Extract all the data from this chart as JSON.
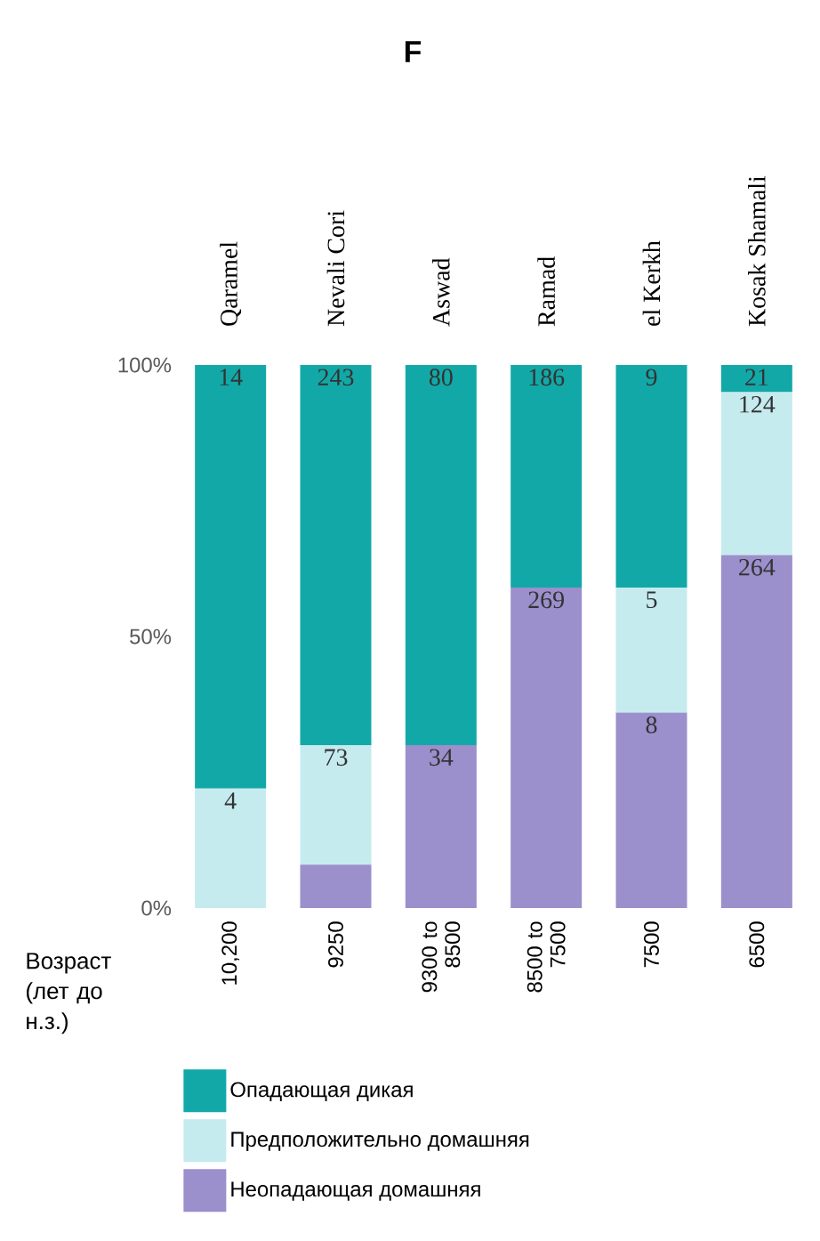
{
  "chart_data": {
    "type": "bar",
    "title": "F",
    "stacked": true,
    "categories": [
      "Qaramel",
      "Nevali Cori",
      "Aswad",
      "Ramad",
      "el Kerkh",
      "Kosak Shamali"
    ],
    "series": [
      {
        "name": "Неопадающая домашняя",
        "color": "#9b8fcc",
        "values": [
          0,
          8,
          30,
          59,
          36,
          65
        ]
      },
      {
        "name": "Предположительно домашняя",
        "color": "#c5ebee",
        "values": [
          22,
          22,
          0,
          0,
          23,
          30
        ]
      },
      {
        "name": "Опадающая дикая",
        "color": "#13a8a8",
        "values": [
          78,
          70,
          70,
          41,
          41,
          5
        ]
      }
    ],
    "ylim": [
      0,
      100
    ],
    "yticks": [
      {
        "value": 0,
        "label": "0%"
      },
      {
        "value": 50,
        "label": "50%"
      },
      {
        "value": 100,
        "label": "100%"
      }
    ],
    "legend": "bottom",
    "annotations": [
      "Возраст (лет до н.з.)",
      "10,200",
      "9250",
      "9300 to 8500",
      "8500 to 7500",
      "7500",
      "6500",
      {
        "text": "4",
        "x": "Qaramel",
        "y": 22
      },
      {
        "text": "14",
        "x": "Qaramel",
        "y": 100
      },
      {
        "text": "73",
        "x": "Nevali Cori",
        "y": 30
      },
      {
        "text": "243",
        "x": "Nevali Cori",
        "y": 100
      },
      {
        "text": "34",
        "x": "Aswad",
        "y": 30
      },
      {
        "text": "80",
        "x": "Aswad",
        "y": 100
      },
      {
        "text": "269",
        "x": "Ramad",
        "y": 59
      },
      {
        "text": "186",
        "x": "Ramad",
        "y": 100
      },
      {
        "text": "8",
        "x": "el Kerkh",
        "y": 36
      },
      {
        "text": "5",
        "x": "el Kerkh",
        "y": 59
      },
      {
        "text": "9",
        "x": "el Kerkh",
        "y": 100
      },
      {
        "text": "264",
        "x": "Kosak Shamali",
        "y": 65
      },
      {
        "text": "124",
        "x": "Kosak Shamali",
        "y": 95
      },
      {
        "text": "21",
        "x": "Kosak Shamali",
        "y": 100
      }
    ]
  }
}
